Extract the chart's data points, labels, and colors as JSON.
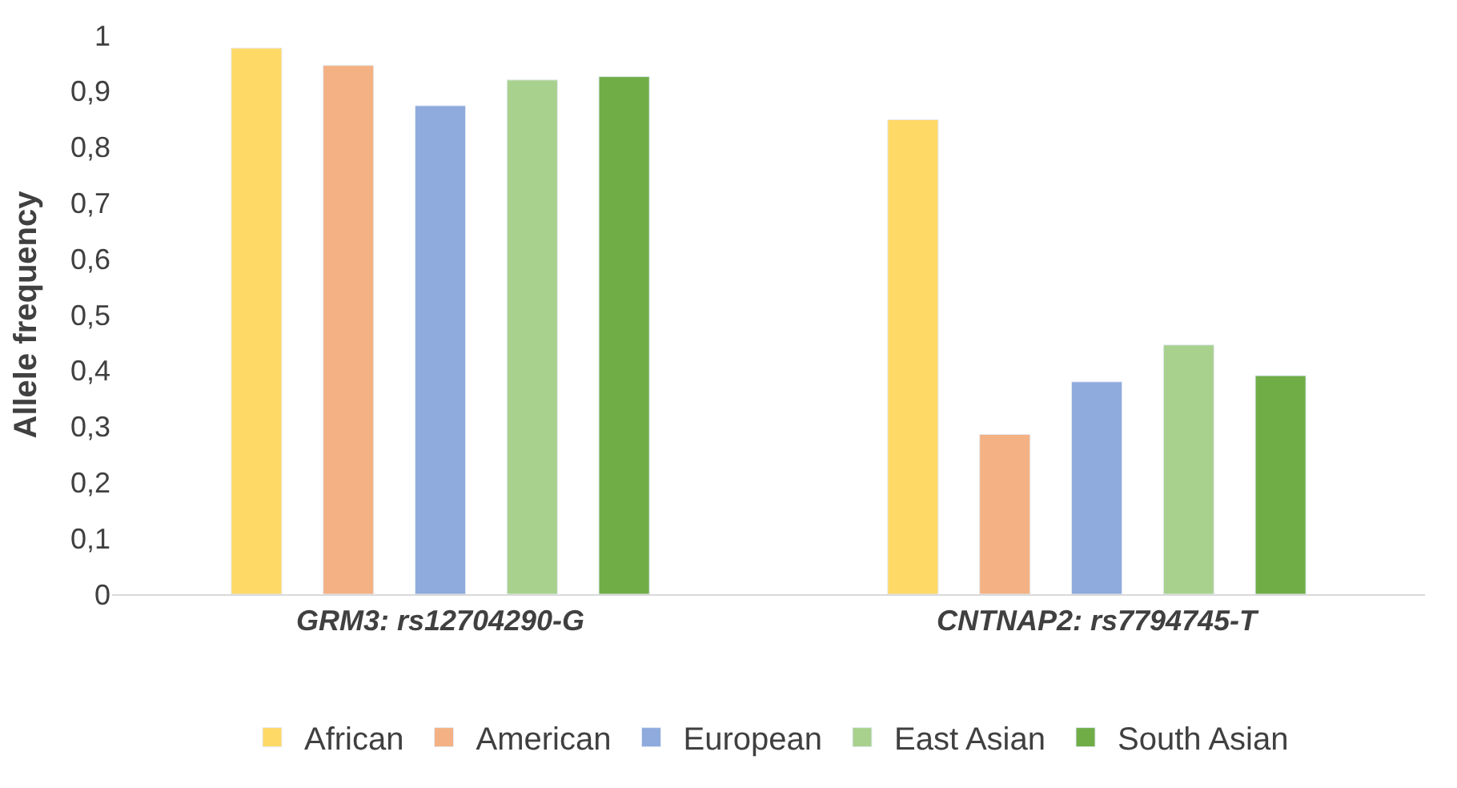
{
  "chart_data": {
    "type": "bar",
    "ylabel": "Allele frequency",
    "categories": [
      "GRM3: rs12704290-G",
      "CNTNAP2: rs7794745-T"
    ],
    "series": [
      {
        "name": "African",
        "color": "#ffd966",
        "values": [
          0.977,
          0.849
        ]
      },
      {
        "name": "American",
        "color": "#f4b183",
        "values": [
          0.946,
          0.286
        ]
      },
      {
        "name": "European",
        "color": "#8faadc",
        "values": [
          0.874,
          0.38
        ]
      },
      {
        "name": "East Asian",
        "color": "#a9d18e",
        "values": [
          0.92,
          0.446
        ]
      },
      {
        "name": "South Asian",
        "color": "#70ad47",
        "values": [
          0.926,
          0.391
        ]
      }
    ],
    "ylim": [
      0,
      1
    ],
    "yticks": [
      0,
      {
        "value": 0.1,
        "label": "0,1"
      },
      {
        "value": 0.2,
        "label": "0,2"
      },
      {
        "value": 0.3,
        "label": "0,3"
      },
      {
        "value": 0.4,
        "label": "0,4"
      },
      {
        "value": 0.5,
        "label": "0,5"
      },
      {
        "value": 0.6,
        "label": "0,6"
      },
      {
        "value": 0.7,
        "label": "0,7"
      },
      {
        "value": 0.8,
        "label": "0,8"
      },
      {
        "value": 0.9,
        "label": "0,9"
      },
      1
    ],
    "legend": "bottom"
  }
}
